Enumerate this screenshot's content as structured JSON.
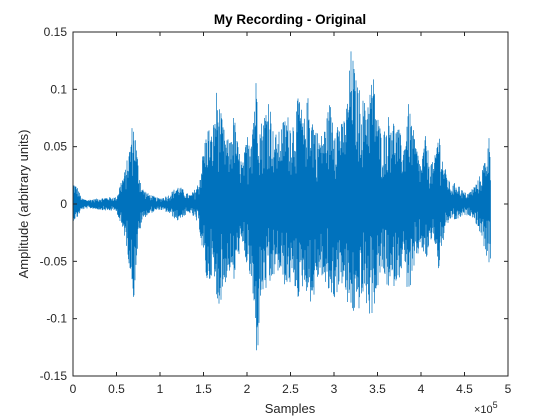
{
  "chart_data": {
    "type": "line",
    "title": "My Recording - Original",
    "xlabel": "Samples",
    "ylabel": "Amplitude (arbitrary units)",
    "x_exponent_label": "×10",
    "x_exponent_power": "5",
    "xlim": [
      0,
      500000
    ],
    "ylim": [
      -0.15,
      0.15
    ],
    "x_ticks": [
      0,
      50000,
      100000,
      150000,
      200000,
      250000,
      300000,
      350000,
      400000,
      450000,
      500000
    ],
    "x_tick_labels": [
      "0",
      "0.5",
      "1",
      "1.5",
      "2",
      "2.5",
      "3",
      "3.5",
      "4",
      "4.5",
      "5"
    ],
    "y_ticks": [
      -0.15,
      -0.1,
      -0.05,
      0,
      0.05,
      0.1,
      0.15
    ],
    "y_tick_labels": [
      "-0.15",
      "-0.1",
      "-0.05",
      "0",
      "0.05",
      "0.1",
      "0.15"
    ],
    "grid": false,
    "series_color": "#0072BD",
    "series": [
      {
        "envelope_x": [
          0,
          5000,
          10000,
          15000,
          20000,
          30000,
          40000,
          50000,
          55000,
          60000,
          65000,
          68000,
          70000,
          72000,
          75000,
          78000,
          80000,
          85000,
          90000,
          95000,
          100000,
          110000,
          120000,
          125000,
          130000,
          135000,
          140000,
          145000,
          150000,
          155000,
          160000,
          165000,
          170000,
          175000,
          180000,
          185000,
          190000,
          195000,
          200000,
          205000,
          210000,
          212000,
          215000,
          220000,
          225000,
          230000,
          235000,
          240000,
          245000,
          250000,
          255000,
          260000,
          265000,
          270000,
          275000,
          280000,
          285000,
          290000,
          295000,
          300000,
          305000,
          310000,
          315000,
          320000,
          325000,
          330000,
          335000,
          340000,
          345000,
          350000,
          355000,
          360000,
          365000,
          370000,
          375000,
          380000,
          385000,
          390000,
          395000,
          400000,
          405000,
          410000,
          415000,
          420000,
          425000,
          430000,
          435000,
          440000,
          445000,
          450000,
          455000,
          460000,
          465000,
          470000,
          475000,
          478000,
          480000
        ],
        "envelope_max": [
          0.02,
          0.015,
          0.005,
          0.004,
          0.004,
          0.005,
          0.006,
          0.006,
          0.02,
          0.03,
          0.05,
          0.07,
          0.072,
          0.06,
          0.035,
          0.02,
          0.014,
          0.01,
          0.008,
          0.006,
          0.005,
          0.008,
          0.016,
          0.014,
          0.01,
          0.008,
          0.013,
          0.02,
          0.05,
          0.07,
          0.06,
          0.1,
          0.08,
          0.06,
          0.055,
          0.08,
          0.05,
          0.035,
          0.06,
          0.07,
          0.11,
          0.115,
          0.07,
          0.08,
          0.1,
          0.065,
          0.06,
          0.07,
          0.08,
          0.075,
          0.075,
          0.1,
          0.07,
          0.095,
          0.08,
          0.065,
          0.06,
          0.07,
          0.09,
          0.08,
          0.075,
          0.07,
          0.09,
          0.14,
          0.11,
          0.1,
          0.09,
          0.1,
          0.115,
          0.08,
          0.06,
          0.07,
          0.085,
          0.07,
          0.065,
          0.05,
          0.09,
          0.07,
          0.05,
          0.035,
          0.06,
          0.04,
          0.035,
          0.07,
          0.04,
          0.025,
          0.015,
          0.02,
          0.015,
          0.01,
          0.01,
          0.015,
          0.02,
          0.03,
          0.045,
          0.06,
          0.055
        ],
        "envelope_min": [
          -0.015,
          -0.012,
          -0.005,
          -0.004,
          -0.004,
          -0.005,
          -0.006,
          -0.006,
          -0.02,
          -0.03,
          -0.055,
          -0.075,
          -0.085,
          -0.06,
          -0.035,
          -0.02,
          -0.014,
          -0.01,
          -0.008,
          -0.006,
          -0.005,
          -0.008,
          -0.015,
          -0.012,
          -0.01,
          -0.008,
          -0.013,
          -0.02,
          -0.05,
          -0.075,
          -0.06,
          -0.09,
          -0.085,
          -0.07,
          -0.06,
          -0.07,
          -0.045,
          -0.04,
          -0.055,
          -0.07,
          -0.125,
          -0.138,
          -0.09,
          -0.075,
          -0.08,
          -0.065,
          -0.06,
          -0.065,
          -0.075,
          -0.07,
          -0.075,
          -0.085,
          -0.07,
          -0.08,
          -0.09,
          -0.07,
          -0.06,
          -0.075,
          -0.08,
          -0.085,
          -0.075,
          -0.07,
          -0.09,
          -0.095,
          -0.1,
          -0.09,
          -0.08,
          -0.1,
          -0.095,
          -0.075,
          -0.06,
          -0.07,
          -0.08,
          -0.07,
          -0.065,
          -0.05,
          -0.08,
          -0.07,
          -0.05,
          -0.035,
          -0.055,
          -0.035,
          -0.03,
          -0.06,
          -0.035,
          -0.02,
          -0.012,
          -0.015,
          -0.012,
          -0.01,
          -0.01,
          -0.012,
          -0.02,
          -0.03,
          -0.045,
          -0.055,
          -0.05
        ]
      }
    ]
  }
}
